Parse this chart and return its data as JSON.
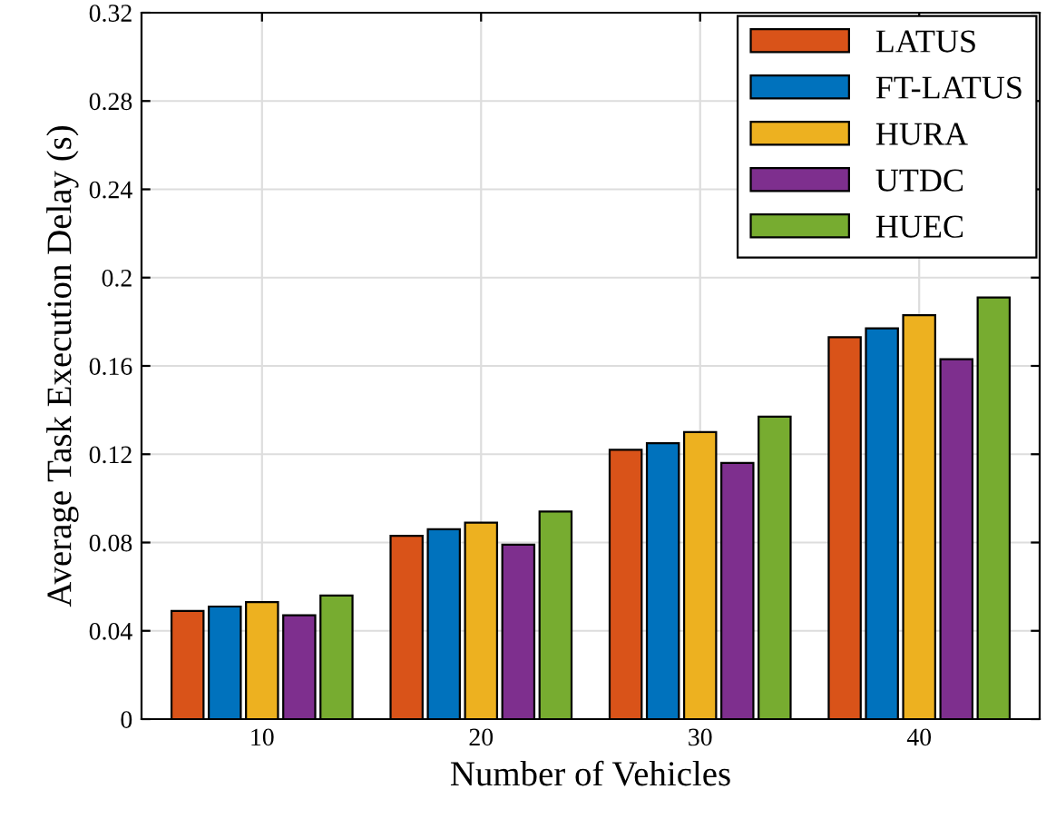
{
  "chart_data": {
    "type": "bar",
    "xlabel": "Number of Vehicles",
    "ylabel": "Average Task Execution Delay (s)",
    "categories": [
      "10",
      "20",
      "30",
      "40"
    ],
    "series": [
      {
        "name": "LATUS",
        "color": "#d95319",
        "values": [
          0.049,
          0.083,
          0.122,
          0.173
        ]
      },
      {
        "name": "FT-LATUS",
        "color": "#0072bd",
        "values": [
          0.051,
          0.086,
          0.125,
          0.177
        ]
      },
      {
        "name": "HURA",
        "color": "#edb120",
        "values": [
          0.053,
          0.089,
          0.13,
          0.183
        ]
      },
      {
        "name": "UTDC",
        "color": "#7e2f8e",
        "values": [
          0.047,
          0.079,
          0.116,
          0.163
        ]
      },
      {
        "name": "HUEC",
        "color": "#77ac30",
        "values": [
          0.056,
          0.094,
          0.137,
          0.191
        ]
      }
    ],
    "ylim": [
      0,
      0.32
    ],
    "yticks": [
      0,
      0.04,
      0.08,
      0.12,
      0.16,
      0.2,
      0.24,
      0.28,
      0.32
    ],
    "grid": true,
    "legend": "top right"
  }
}
